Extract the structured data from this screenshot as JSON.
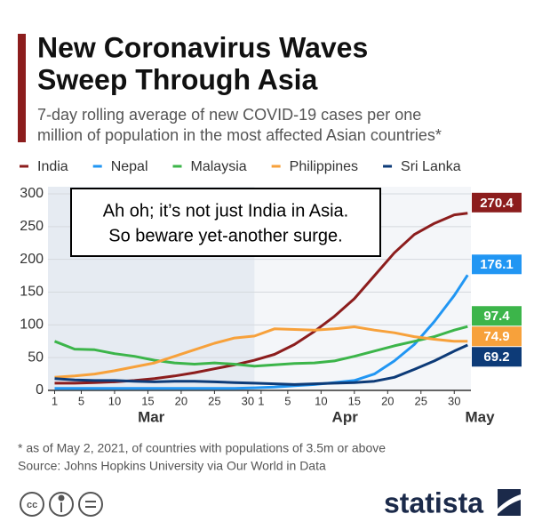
{
  "chart_data": {
    "type": "line",
    "title": [
      "New Coronavirus Waves",
      "Sweep Through Asia"
    ],
    "subtitle": [
      "7-day rolling average of new COVID-19 cases per one",
      "million of population in the most affected Asian countries*"
    ],
    "annotation": [
      "Ah oh; it’s not just India in Asia.",
      "So beware yet-another surge."
    ],
    "footnote": "* as of May 2, 2021, of countries with populations of 3.5m or above",
    "source": "Source: Johns Hopkins University via Our World in Data",
    "brand": "statista",
    "months": [
      "Mar",
      "Apr",
      "May"
    ],
    "x": [
      0,
      3,
      6,
      9,
      12,
      15,
      18,
      21,
      24,
      27,
      30,
      33,
      36,
      39,
      42,
      45,
      48,
      51,
      54,
      57,
      60,
      62
    ],
    "series": [
      {
        "name": "India",
        "color": "#8c1d1d",
        "values": [
          11,
          11,
          12,
          13,
          15,
          18,
          22,
          27,
          33,
          39,
          46,
          55,
          70,
          90,
          113,
          140,
          175,
          210,
          238,
          255,
          268,
          270.4
        ]
      },
      {
        "name": "Nepal",
        "color": "#2196f3",
        "values": [
          3,
          3,
          3,
          3,
          3,
          3,
          3,
          3,
          3,
          3,
          4,
          5,
          7,
          9,
          12,
          15,
          25,
          45,
          70,
          105,
          145,
          176.1
        ]
      },
      {
        "name": "Malaysia",
        "color": "#3cb54a",
        "values": [
          75,
          63,
          62,
          56,
          52,
          46,
          42,
          40,
          42,
          40,
          37,
          39,
          41,
          42,
          45,
          52,
          60,
          68,
          75,
          82,
          92,
          97.4
        ]
      },
      {
        "name": "Philippines",
        "color": "#f7a13b",
        "values": [
          20,
          22,
          25,
          30,
          36,
          42,
          52,
          62,
          72,
          80,
          83,
          94,
          93,
          92,
          94,
          97,
          92,
          88,
          82,
          78,
          75,
          74.9
        ]
      },
      {
        "name": "Sri Lanka",
        "color": "#0d3b78",
        "values": [
          18,
          16,
          15,
          15,
          14,
          13,
          14,
          14,
          13,
          12,
          11,
          10,
          9,
          10,
          11,
          12,
          14,
          20,
          32,
          45,
          60,
          69.2
        ]
      }
    ],
    "xlim": [
      -1,
      62.5
    ],
    "xticks": [
      {
        "value": 0,
        "label": "1"
      },
      {
        "value": 4,
        "label": "5"
      },
      {
        "value": 9,
        "label": "10"
      },
      {
        "value": 14,
        "label": "15"
      },
      {
        "value": 19,
        "label": "20"
      },
      {
        "value": 24,
        "label": "25"
      },
      {
        "value": 29,
        "label": "30"
      },
      {
        "value": 31,
        "label": "1"
      },
      {
        "value": 35,
        "label": "5"
      },
      {
        "value": 40,
        "label": "10"
      },
      {
        "value": 45,
        "label": "15"
      },
      {
        "value": 50,
        "label": "20"
      },
      {
        "value": 55,
        "label": "25"
      },
      {
        "value": 60,
        "label": "30"
      }
    ],
    "ylim": [
      0,
      300
    ],
    "yticks": [
      0,
      50,
      100,
      150,
      200,
      250,
      300
    ],
    "grid": true
  }
}
